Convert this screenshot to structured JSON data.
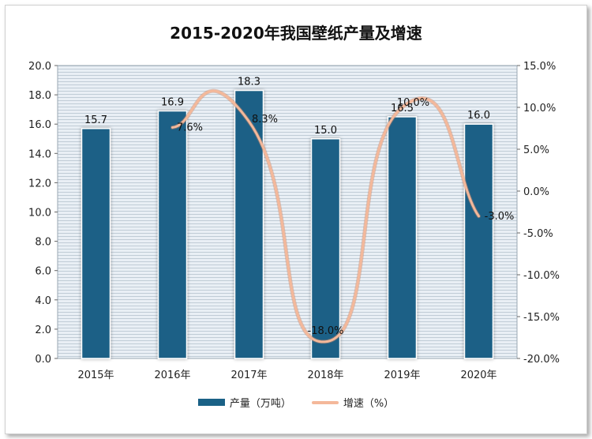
{
  "chart_data": {
    "type": "bar+line",
    "title": "2015-2020年我国壁纸产量及增速",
    "categories": [
      "2015年",
      "2016年",
      "2017年",
      "2018年",
      "2019年",
      "2020年"
    ],
    "series": [
      {
        "name": "产量（万吨）",
        "type": "bar",
        "axis": "left",
        "values": [
          15.7,
          16.9,
          18.3,
          15.0,
          16.5,
          16.0
        ],
        "labels": [
          "15.7",
          "16.9",
          "18.3",
          "15.0",
          "16.5",
          "16.0"
        ],
        "color": "#1a6186"
      },
      {
        "name": "增速（%）",
        "type": "line",
        "axis": "right",
        "values": [
          null,
          7.6,
          8.3,
          -18.0,
          10.0,
          -3.0
        ],
        "labels": [
          "",
          "7.6%",
          "8.3%",
          "-18.0%",
          "10.0%",
          "-3.0%"
        ],
        "color": "#f4b89a"
      }
    ],
    "y_left": {
      "min": 0,
      "max": 20,
      "step": 2,
      "ticks": [
        "0.0",
        "2.0",
        "4.0",
        "6.0",
        "8.0",
        "10.0",
        "12.0",
        "14.0",
        "16.0",
        "18.0",
        "20.0"
      ]
    },
    "y_right": {
      "min": -20,
      "max": 15,
      "step": 5,
      "ticks": [
        "-20.0%",
        "-15.0%",
        "-10.0%",
        "-5.0%",
        "0.0%",
        "5.0%",
        "10.0%",
        "15.0%"
      ]
    },
    "grid": true,
    "legend_position": "bottom"
  }
}
